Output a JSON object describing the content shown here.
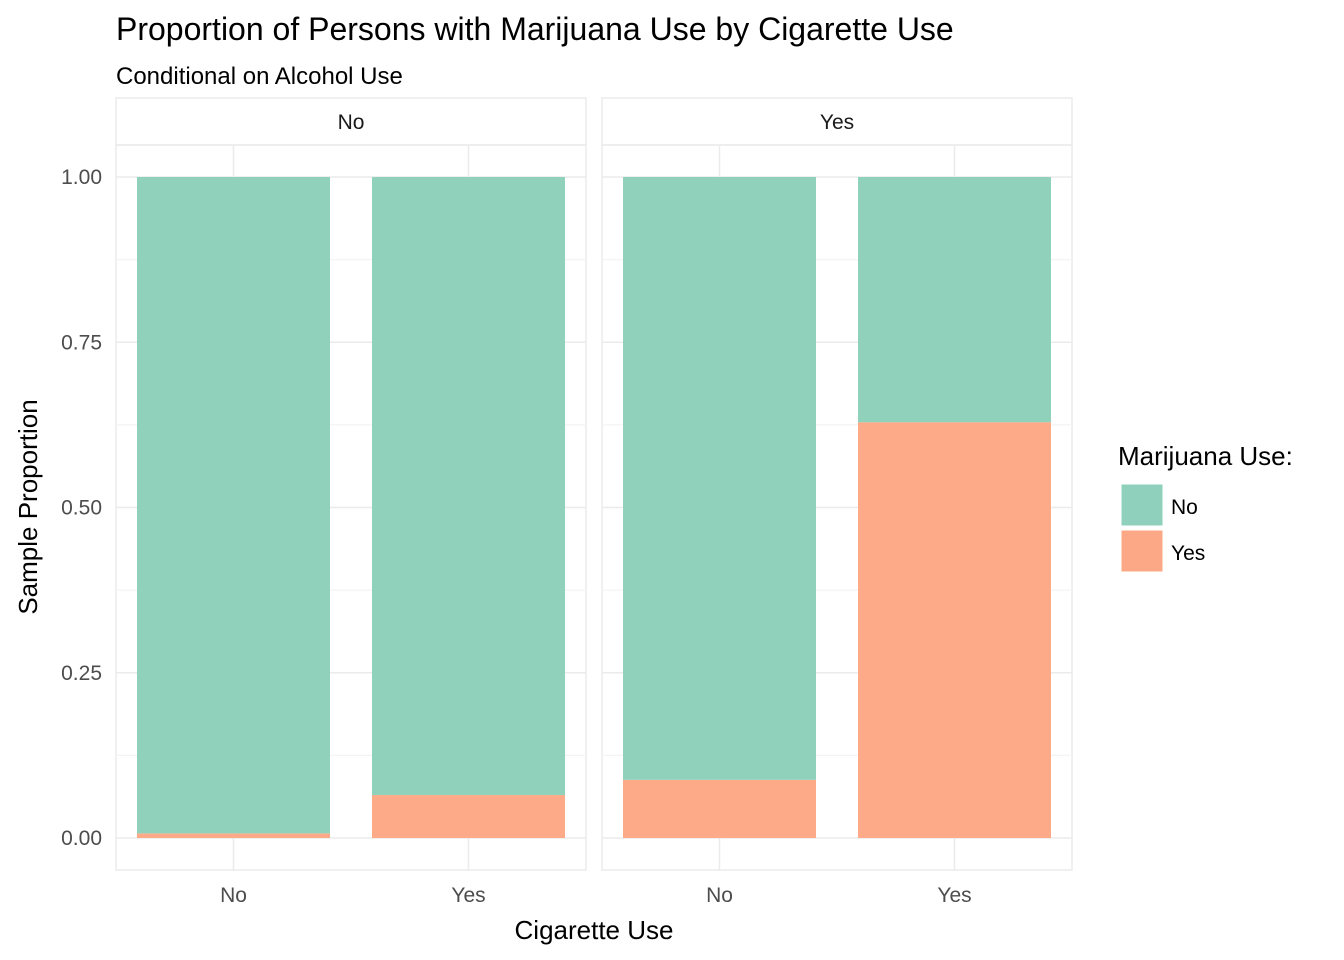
{
  "chart_data": {
    "type": "bar",
    "stacked": true,
    "title": "Proportion of Persons with Marijuana Use by Cigarette Use",
    "subtitle": "Conditional on Alcohol Use",
    "xlabel": "Cigarette Use",
    "ylabel": "Sample Proportion",
    "ylim": [
      0,
      1.05
    ],
    "yticks": [
      "0.00",
      "0.25",
      "0.50",
      "0.75",
      "1.00"
    ],
    "ytick_values": [
      0,
      0.25,
      0.5,
      0.75,
      1.0
    ],
    "categories": [
      "No",
      "Yes"
    ],
    "legend": {
      "title": "Marijuana Use:",
      "position": "right",
      "entries": [
        {
          "name": "No",
          "color": "#8ed0bb"
        },
        {
          "name": "Yes",
          "color": "#fca886"
        }
      ]
    },
    "grid": true,
    "facets": [
      {
        "label": "No",
        "series": [
          {
            "name": "Yes",
            "color": "#fca886",
            "values": [
              0.007,
              0.065
            ]
          },
          {
            "name": "No",
            "color": "#8ed0bb",
            "values": [
              0.993,
              0.935
            ]
          }
        ]
      },
      {
        "label": "Yes",
        "series": [
          {
            "name": "Yes",
            "color": "#fca886",
            "values": [
              0.088,
              0.629
            ]
          },
          {
            "name": "No",
            "color": "#8ed0bb",
            "values": [
              0.912,
              0.371
            ]
          }
        ]
      }
    ]
  }
}
